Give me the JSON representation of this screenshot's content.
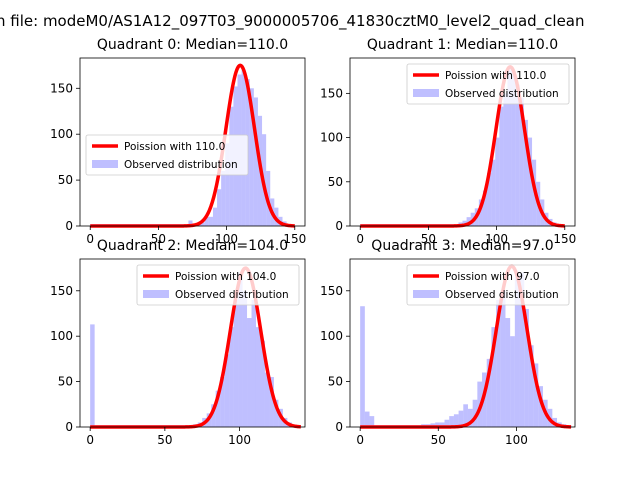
{
  "figure": {
    "suptitle": "n file: modeM0/AS1A12_097T03_9000005706_41830cztM0_level2_quad_clean"
  },
  "colors": {
    "hist": "#8080ff",
    "hist_alpha": 0.5,
    "poisson": "#ff0000"
  },
  "chart_data": [
    {
      "type": "bar",
      "title": "Quadrant 0: Median=110.0",
      "median": 110.0,
      "xlim": [
        -7.5,
        157.5
      ],
      "ylim": [
        0,
        183
      ],
      "xticks": [
        0,
        50,
        100,
        150
      ],
      "xtick_labels": [
        "0",
        "50",
        "100",
        "150"
      ],
      "yticks": [
        0,
        50,
        100,
        150
      ],
      "ytick_labels": [
        "0",
        "50",
        "100",
        "150"
      ],
      "legend_position": "center-left",
      "legend": [
        {
          "label": "Poission with 110.0",
          "kind": "line"
        },
        {
          "label": "Observed distribution",
          "kind": "patch"
        }
      ],
      "hist": {
        "bin_edges": [
          0,
          3,
          6,
          9,
          12,
          15,
          18,
          21,
          24,
          27,
          30,
          33,
          36,
          39,
          42,
          45,
          48,
          51,
          54,
          57,
          60,
          63,
          66,
          69,
          72,
          75,
          78,
          81,
          84,
          87,
          90,
          93,
          96,
          99,
          102,
          105,
          108,
          111,
          114,
          117,
          120,
          123,
          126,
          129,
          132,
          135,
          138,
          141,
          144,
          147,
          150
        ],
        "counts": [
          2,
          2,
          2,
          2,
          2,
          2,
          2,
          2,
          2,
          2,
          2,
          2,
          2,
          2,
          2,
          2,
          2,
          2,
          2,
          2,
          2,
          2,
          2,
          2,
          6,
          2,
          2,
          4,
          10,
          10,
          20,
          40,
          60,
          90,
          130,
          152,
          165,
          170,
          160,
          150,
          140,
          120,
          100,
          60,
          30,
          20,
          10,
          5,
          2,
          0
        ]
      },
      "poisson": {
        "mean": 110.0,
        "peak": 175
      }
    },
    {
      "type": "bar",
      "title": "Quadrant 1: Median=110.0",
      "median": 110.0,
      "xlim": [
        -7.5,
        157.5
      ],
      "ylim": [
        0,
        190
      ],
      "xticks": [
        0,
        50,
        100,
        150
      ],
      "xtick_labels": [
        "0",
        "50",
        "100",
        "150"
      ],
      "yticks": [
        0,
        50,
        100,
        150
      ],
      "ytick_labels": [
        "0",
        "50",
        "100",
        "150"
      ],
      "legend_position": "upper-right",
      "legend": [
        {
          "label": "Poission with 110.0",
          "kind": "line"
        },
        {
          "label": "Observed distribution",
          "kind": "patch"
        }
      ],
      "hist": {
        "bin_edges": [
          0,
          3,
          6,
          9,
          12,
          15,
          18,
          21,
          24,
          27,
          30,
          33,
          36,
          39,
          42,
          45,
          48,
          51,
          54,
          57,
          60,
          63,
          66,
          69,
          72,
          75,
          78,
          81,
          84,
          87,
          90,
          93,
          96,
          99,
          102,
          105,
          108,
          111,
          114,
          117,
          120,
          123,
          126,
          129,
          132,
          135,
          138,
          141,
          144,
          147,
          150
        ],
        "counts": [
          2,
          2,
          2,
          2,
          2,
          2,
          2,
          2,
          2,
          2,
          2,
          2,
          2,
          2,
          2,
          2,
          2,
          2,
          2,
          2,
          2,
          2,
          2,
          2,
          4,
          6,
          10,
          15,
          20,
          30,
          40,
          60,
          75,
          100,
          135,
          150,
          180,
          175,
          160,
          145,
          120,
          100,
          75,
          50,
          30,
          15,
          8,
          4,
          2,
          0
        ]
      },
      "poisson": {
        "mean": 110.0,
        "peak": 180
      }
    },
    {
      "type": "bar",
      "title": "Quadrant 2: Median=104.0",
      "median": 104.0,
      "xlim": [
        -6.8,
        143.8
      ],
      "ylim": [
        0,
        185
      ],
      "xticks": [
        0,
        50,
        100
      ],
      "xtick_labels": [
        "0",
        "50",
        "100"
      ],
      "yticks": [
        0,
        50,
        100,
        150
      ],
      "ytick_labels": [
        "0",
        "50",
        "100",
        "150"
      ],
      "legend_position": "upper-right",
      "legend": [
        {
          "label": "Poission with 104.0",
          "kind": "line"
        },
        {
          "label": "Observed distribution",
          "kind": "patch"
        }
      ],
      "hist": {
        "bin_edges": [
          0,
          3,
          6,
          9,
          12,
          15,
          18,
          21,
          24,
          27,
          30,
          33,
          36,
          39,
          42,
          45,
          48,
          51,
          54,
          57,
          60,
          63,
          66,
          69,
          72,
          75,
          78,
          81,
          84,
          87,
          90,
          93,
          96,
          99,
          102,
          105,
          108,
          111,
          114,
          117,
          120,
          123,
          126,
          129,
          132,
          135,
          138,
          141
        ],
        "counts": [
          113,
          2,
          2,
          2,
          2,
          2,
          2,
          2,
          2,
          2,
          2,
          2,
          2,
          2,
          2,
          2,
          2,
          2,
          2,
          2,
          2,
          2,
          2,
          3,
          5,
          10,
          15,
          25,
          40,
          55,
          80,
          110,
          140,
          170,
          150,
          120,
          140,
          110,
          95,
          60,
          55,
          30,
          20,
          10,
          5,
          2,
          1
        ]
      },
      "poisson": {
        "mean": 104.0,
        "peak": 175
      }
    },
    {
      "type": "bar",
      "title": "Quadrant 3: Median=97.0",
      "median": 97.0,
      "xlim": [
        -6.5,
        137.5
      ],
      "ylim": [
        0,
        185
      ],
      "xticks": [
        0,
        50,
        100
      ],
      "xtick_labels": [
        "0",
        "50",
        "100"
      ],
      "yticks": [
        0,
        50,
        100,
        150
      ],
      "ytick_labels": [
        "0",
        "50",
        "100",
        "150"
      ],
      "legend_position": "upper-right",
      "legend": [
        {
          "label": "Poission with 97.0",
          "kind": "line"
        },
        {
          "label": "Observed distribution",
          "kind": "patch"
        }
      ],
      "hist": {
        "bin_edges": [
          0,
          3,
          6,
          9,
          12,
          15,
          18,
          21,
          24,
          27,
          30,
          33,
          36,
          39,
          42,
          45,
          48,
          51,
          54,
          57,
          60,
          63,
          66,
          69,
          72,
          75,
          78,
          81,
          84,
          87,
          90,
          93,
          96,
          99,
          102,
          105,
          108,
          111,
          114,
          117,
          120,
          123,
          126,
          129,
          132,
          135
        ],
        "counts": [
          133,
          17,
          12,
          2,
          2,
          2,
          2,
          2,
          2,
          2,
          2,
          2,
          2,
          3,
          3,
          4,
          5,
          5,
          8,
          12,
          14,
          18,
          25,
          20,
          30,
          50,
          60,
          75,
          110,
          140,
          150,
          120,
          100,
          165,
          170,
          130,
          90,
          70,
          45,
          30,
          20,
          10,
          5,
          3,
          2
        ]
      },
      "poisson": {
        "mean": 97.0,
        "peak": 177
      }
    }
  ]
}
